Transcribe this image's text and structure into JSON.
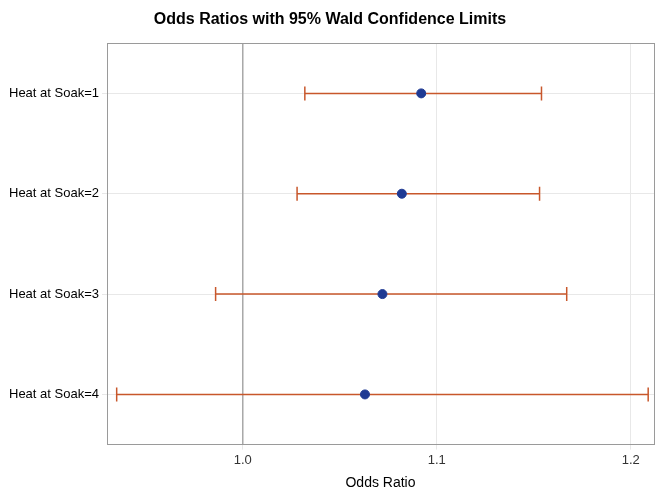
{
  "chart_data": {
    "type": "forest",
    "title": "Odds Ratios with 95% Wald Confidence Limits",
    "x_label": "Odds Ratio",
    "categories": [
      "Heat at Soak=1",
      "Heat at Soak=2",
      "Heat at Soak=3",
      "Heat at Soak=4"
    ],
    "values": [
      1.092,
      1.082,
      1.072,
      1.063
    ],
    "lower": [
      1.032,
      1.028,
      0.986,
      0.935
    ],
    "upper": [
      1.154,
      1.153,
      1.167,
      1.209
    ],
    "xlim": [
      0.93,
      1.212
    ],
    "xticks": [
      {
        "value": 1,
        "label": "1.0"
      },
      1.1,
      1.2
    ],
    "reference_line": 1,
    "grid": true,
    "color": "#1f3a93"
  }
}
